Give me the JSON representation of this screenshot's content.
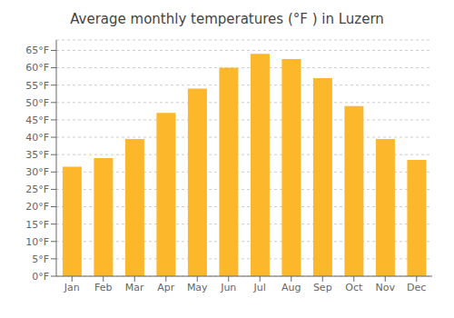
{
  "chart_data": {
    "type": "bar",
    "title": "Average monthly temperatures (°F ) in Luzern",
    "categories": [
      "Jan",
      "Feb",
      "Mar",
      "Apr",
      "May",
      "Jun",
      "Jul",
      "Aug",
      "Sep",
      "Oct",
      "Nov",
      "Dec"
    ],
    "values": [
      31.5,
      34.0,
      39.5,
      47.0,
      54.0,
      60.0,
      64.0,
      62.5,
      57.0,
      49.0,
      39.5,
      33.5
    ],
    "color": "#FDB72A",
    "ylim": [
      0,
      68
    ],
    "yticks": [
      {
        "value": 0,
        "label": "0°F"
      },
      {
        "value": 5,
        "label": "5°F"
      },
      {
        "value": 10,
        "label": "10°F"
      },
      {
        "value": 15,
        "label": "15°F"
      },
      {
        "value": 20,
        "label": "20°F"
      },
      {
        "value": 25,
        "label": "25°F"
      },
      {
        "value": 30,
        "label": "30°F"
      },
      {
        "value": 35,
        "label": "35°F"
      },
      {
        "value": 40,
        "label": "40°F"
      },
      {
        "value": 45,
        "label": "45°F"
      },
      {
        "value": 50,
        "label": "50°F"
      },
      {
        "value": 55,
        "label": "55°F"
      },
      {
        "value": 60,
        "label": "60°F"
      },
      {
        "value": 65,
        "label": "65°F"
      }
    ],
    "grid": true
  }
}
